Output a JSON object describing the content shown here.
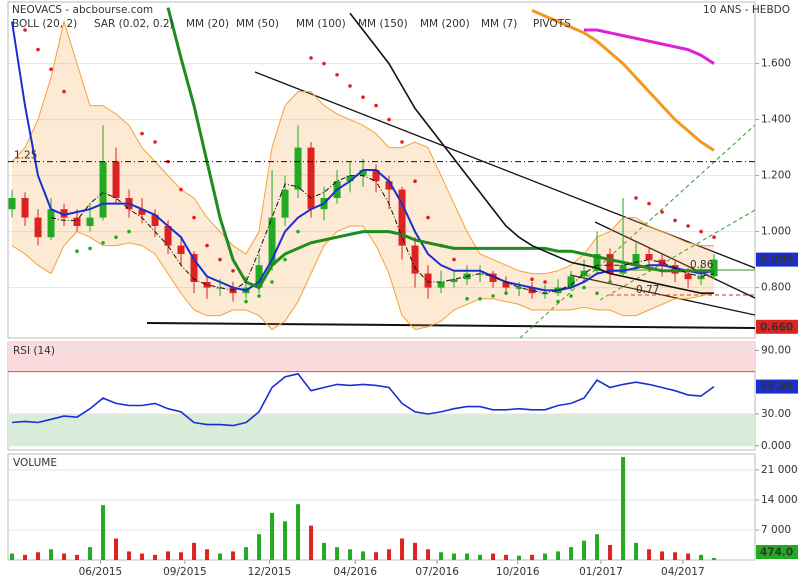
{
  "chart_data": [
    {
      "type": "candlestick",
      "title": "NEOVACS - abcbourse.com",
      "subtitle": "10 ANS - HEBDO",
      "x": [
        0,
        1,
        2,
        3,
        4,
        5,
        6,
        7,
        8,
        9,
        10,
        11,
        12,
        13,
        14,
        15,
        16,
        17,
        18,
        19,
        20,
        21,
        22,
        23,
        24,
        25,
        26,
        27,
        28,
        29,
        30,
        31,
        32,
        33,
        34,
        35,
        36,
        37,
        38,
        39,
        40,
        41,
        42,
        43,
        44,
        45,
        46,
        47,
        48,
        49,
        50,
        51,
        52,
        53,
        54
      ],
      "xlim": [
        -0.31,
        57.15
      ],
      "open": [
        1.08,
        1.12,
        1.05,
        0.98,
        1.08,
        1.05,
        1.02,
        1.05,
        1.25,
        1.12,
        1.08,
        1.06,
        1.02,
        0.95,
        0.92,
        0.82,
        0.8,
        0.8,
        0.78,
        0.8,
        0.88,
        1.05,
        1.15,
        1.3,
        1.08,
        1.12,
        1.18,
        1.2,
        1.22,
        1.18,
        1.15,
        0.95,
        0.85,
        0.8,
        0.82,
        0.83,
        0.85,
        0.85,
        0.82,
        0.8,
        0.8,
        0.78,
        0.78,
        0.8,
        0.84,
        0.86,
        0.92,
        0.85,
        0.88,
        0.92,
        0.9,
        0.88,
        0.85,
        0.83,
        0.84
      ],
      "high": [
        1.15,
        1.14,
        1.08,
        1.12,
        1.1,
        1.08,
        1.1,
        1.38,
        1.3,
        1.15,
        1.12,
        1.08,
        1.04,
        0.98,
        0.93,
        0.84,
        0.83,
        0.82,
        0.84,
        0.92,
        1.22,
        1.2,
        1.38,
        1.32,
        1.16,
        1.22,
        1.25,
        1.26,
        1.24,
        1.2,
        1.16,
        0.98,
        0.88,
        0.86,
        0.86,
        0.88,
        0.88,
        0.86,
        0.84,
        0.82,
        0.82,
        0.81,
        0.83,
        0.86,
        0.9,
        1.0,
        0.94,
        1.12,
        0.96,
        0.94,
        0.92,
        0.9,
        0.87,
        0.88,
        0.92
      ],
      "low": [
        1.05,
        1.02,
        0.95,
        0.97,
        1.02,
        1.0,
        1.0,
        1.04,
        1.1,
        1.05,
        1.03,
        0.98,
        0.92,
        0.88,
        0.78,
        0.76,
        0.77,
        0.75,
        0.76,
        0.78,
        0.86,
        1.02,
        1.12,
        1.05,
        1.04,
        1.1,
        1.14,
        1.16,
        1.14,
        1.08,
        0.9,
        0.8,
        0.76,
        0.78,
        0.8,
        0.81,
        0.82,
        0.8,
        0.78,
        0.77,
        0.76,
        0.76,
        0.77,
        0.79,
        0.83,
        0.85,
        0.82,
        0.84,
        0.86,
        0.86,
        0.84,
        0.82,
        0.8,
        0.81,
        0.83
      ],
      "close": [
        1.12,
        1.05,
        0.98,
        1.08,
        1.05,
        1.02,
        1.05,
        1.25,
        1.12,
        1.08,
        1.06,
        1.02,
        0.95,
        0.92,
        0.82,
        0.8,
        0.8,
        0.78,
        0.8,
        0.88,
        1.05,
        1.15,
        1.3,
        1.08,
        1.12,
        1.18,
        1.2,
        1.22,
        1.18,
        1.15,
        0.95,
        0.85,
        0.8,
        0.82,
        0.83,
        0.85,
        0.85,
        0.82,
        0.8,
        0.8,
        0.78,
        0.78,
        0.8,
        0.84,
        0.86,
        0.92,
        0.85,
        0.88,
        0.92,
        0.9,
        0.88,
        0.85,
        0.83,
        0.84,
        0.9
      ],
      "up_color": "#22aa22",
      "down_color": "#dd2222",
      "series": [
        {
          "name": "BOLL (20, 2)",
          "color": "#f5a03a",
          "style": "band",
          "upper": [
            1.25,
            1.3,
            1.4,
            1.55,
            1.75,
            1.6,
            1.45,
            1.45,
            1.42,
            1.38,
            1.3,
            1.25,
            1.2,
            1.15,
            1.12,
            1.05,
            1.0,
            0.95,
            0.92,
            1.0,
            1.3,
            1.45,
            1.5,
            1.5,
            1.45,
            1.42,
            1.4,
            1.38,
            1.35,
            1.3,
            1.3,
            1.32,
            1.3,
            1.2,
            1.1,
            1.0,
            0.92,
            0.9,
            0.88,
            0.86,
            0.85,
            0.85,
            0.86,
            0.88,
            0.92,
            0.98,
            1.0,
            1.05,
            1.05,
            1.02,
            1.0,
            0.98,
            0.96,
            0.95,
            0.95
          ],
          "lower": [
            0.95,
            0.92,
            0.88,
            0.85,
            0.95,
            1.0,
            0.98,
            0.95,
            0.95,
            0.96,
            0.95,
            0.92,
            0.85,
            0.78,
            0.72,
            0.7,
            0.7,
            0.72,
            0.72,
            0.7,
            0.65,
            0.68,
            0.75,
            0.85,
            0.95,
            1.0,
            1.02,
            1.02,
            0.95,
            0.85,
            0.7,
            0.65,
            0.66,
            0.68,
            0.72,
            0.74,
            0.76,
            0.76,
            0.75,
            0.74,
            0.72,
            0.72,
            0.72,
            0.72,
            0.73,
            0.72,
            0.72,
            0.7,
            0.7,
            0.72,
            0.74,
            0.76,
            0.76,
            0.77,
            0.78
          ]
        },
        {
          "name": "SAR (0.02, 0.2)",
          "color": "#e02020",
          "color_below": "#22aa22",
          "style": "dots",
          "values": [
            null,
            1.72,
            1.65,
            1.58,
            1.5,
            0.93,
            0.94,
            0.96,
            0.98,
            1.0,
            1.35,
            1.32,
            1.25,
            1.15,
            1.05,
            0.95,
            0.9,
            0.86,
            0.75,
            0.77,
            0.82,
            0.9,
            1.0,
            1.62,
            1.6,
            1.56,
            1.52,
            1.48,
            1.45,
            1.4,
            1.32,
            1.18,
            1.05,
            0.95,
            0.9,
            0.76,
            0.76,
            0.77,
            0.78,
            0.8,
            0.83,
            0.82,
            0.75,
            0.77,
            0.8,
            0.78,
            0.82,
            0.86,
            1.12,
            1.1,
            1.07,
            1.04,
            1.02,
            1.0,
            0.98
          ]
        },
        {
          "name": "MM (20)",
          "color": "#1a2fd0",
          "style": "line",
          "width": 2,
          "values": [
            1.75,
            1.45,
            1.2,
            1.08,
            1.06,
            1.07,
            1.08,
            1.1,
            1.1,
            1.1,
            1.08,
            1.06,
            1.02,
            0.98,
            0.9,
            0.84,
            0.82,
            0.8,
            0.79,
            0.82,
            0.9,
            1.0,
            1.05,
            1.08,
            1.1,
            1.15,
            1.18,
            1.22,
            1.22,
            1.18,
            1.1,
            1.0,
            0.92,
            0.88,
            0.86,
            0.86,
            0.86,
            0.84,
            0.82,
            0.81,
            0.8,
            0.79,
            0.79,
            0.8,
            0.82,
            0.85,
            0.86,
            0.86,
            0.87,
            0.88,
            0.88,
            0.87,
            0.86,
            0.85,
            0.86
          ]
        },
        {
          "name": "MM (50)",
          "color": "#1e8c1e",
          "style": "line",
          "width": 3,
          "values": [
            null,
            null,
            null,
            null,
            null,
            null,
            null,
            null,
            null,
            null,
            null,
            null,
            1.8,
            1.62,
            1.45,
            1.25,
            1.05,
            0.9,
            0.82,
            0.8,
            0.88,
            0.92,
            0.94,
            0.96,
            0.97,
            0.98,
            0.99,
            1.0,
            1.0,
            1.0,
            0.99,
            0.97,
            0.96,
            0.95,
            0.94,
            0.94,
            0.94,
            0.94,
            0.94,
            0.94,
            0.94,
            0.94,
            0.93,
            0.93,
            0.92,
            0.91,
            0.9,
            0.89,
            0.88,
            0.87,
            0.86,
            0.86,
            0.86,
            0.86,
            0.86
          ]
        },
        {
          "name": "MM (100)",
          "color": "#111111",
          "style": "line",
          "width": 1.6,
          "values": [
            null,
            null,
            null,
            null,
            null,
            null,
            null,
            null,
            null,
            null,
            null,
            null,
            null,
            null,
            null,
            null,
            null,
            null,
            null,
            null,
            null,
            null,
            null,
            null,
            null,
            null,
            1.78,
            1.72,
            1.66,
            1.6,
            1.52,
            1.44,
            1.38,
            1.32,
            1.26,
            1.2,
            1.14,
            1.08,
            1.02,
            0.98,
            0.95,
            0.93,
            0.91,
            0.89,
            0.88,
            0.87,
            0.85,
            0.84,
            0.83,
            0.82,
            0.81,
            0.8,
            0.79,
            0.78,
            0.78
          ]
        },
        {
          "name": "MM (150)",
          "color": "#f5961e",
          "style": "line",
          "width": 3,
          "values": [
            null,
            null,
            null,
            null,
            null,
            null,
            null,
            null,
            null,
            null,
            null,
            null,
            null,
            null,
            null,
            null,
            null,
            null,
            null,
            null,
            null,
            null,
            null,
            null,
            null,
            null,
            null,
            null,
            null,
            null,
            null,
            null,
            null,
            null,
            null,
            null,
            null,
            null,
            null,
            null,
            1.79,
            1.77,
            1.75,
            1.73,
            1.71,
            1.68,
            1.64,
            1.6,
            1.55,
            1.5,
            1.45,
            1.4,
            1.36,
            1.32,
            1.29
          ]
        },
        {
          "name": "MM (200)",
          "color": "#e020d8",
          "style": "line",
          "width": 3,
          "values": [
            null,
            null,
            null,
            null,
            null,
            null,
            null,
            null,
            null,
            null,
            null,
            null,
            null,
            null,
            null,
            null,
            null,
            null,
            null,
            null,
            null,
            null,
            null,
            null,
            null,
            null,
            null,
            null,
            null,
            null,
            null,
            null,
            null,
            null,
            null,
            null,
            null,
            null,
            null,
            null,
            null,
            null,
            null,
            null,
            1.72,
            1.72,
            1.71,
            1.7,
            1.69,
            1.68,
            1.67,
            1.66,
            1.65,
            1.63,
            1.6
          ]
        },
        {
          "name": "MM (7)",
          "color": "#111111",
          "style": "line",
          "width": 1,
          "dash": true,
          "values": [
            null,
            null,
            null,
            1.05,
            1.04,
            1.04,
            1.1,
            1.14,
            1.12,
            1.08,
            1.05,
            1.0,
            0.95,
            0.88,
            0.83,
            0.81,
            0.8,
            0.79,
            0.82,
            0.93,
            1.05,
            1.17,
            1.16,
            1.12,
            1.14,
            1.18,
            1.2,
            1.2,
            1.18,
            1.1,
            0.98,
            0.87,
            0.82,
            0.82,
            0.83,
            0.84,
            0.85,
            0.84,
            0.82,
            0.8,
            0.79,
            0.78,
            0.79,
            0.81,
            0.85,
            0.88,
            0.88,
            0.88,
            0.89,
            0.9,
            0.89,
            0.87,
            0.85,
            0.84,
            0.85
          ]
        },
        {
          "name": "PIVOTS",
          "color": "#999999",
          "line_color": "#111111",
          "style": "pivots",
          "levels": [
            {
              "value": 1.25,
              "label": "1.25"
            }
          ]
        }
      ],
      "annotations": [
        {
          "value": 0.86,
          "label": "0.86"
        },
        {
          "value": 0.77,
          "label": "0.77"
        }
      ],
      "last_label": {
        "value": 0.9,
        "label": "0.900",
        "color": "#1a2fd0"
      },
      "low_label": {
        "value": 0.66,
        "label": "0.660",
        "color": "#dd2222"
      },
      "ylim": [
        0.62,
        1.82
      ],
      "yticks": [
        {
          "value": 1.6,
          "label": "1.600"
        },
        {
          "value": 1.4,
          "label": "1.400"
        },
        {
          "value": 1.2,
          "label": "1.200"
        },
        {
          "value": 1.0,
          "label": "1.000"
        },
        {
          "value": 0.8,
          "label": "0.800"
        }
      ],
      "grid": true
    },
    {
      "type": "line",
      "title": "RSI (14)",
      "color": "#1a2fd0",
      "values": [
        22,
        23,
        22,
        25,
        28,
        27,
        35,
        45,
        40,
        38,
        38,
        40,
        35,
        32,
        22,
        20,
        20,
        19,
        22,
        32,
        55,
        65,
        68,
        52,
        55,
        58,
        57,
        58,
        57,
        55,
        40,
        32,
        30,
        32,
        35,
        37,
        37,
        34,
        34,
        35,
        34,
        34,
        38,
        40,
        45,
        62,
        55,
        58,
        60,
        58,
        55,
        52,
        48,
        47,
        55.89
      ],
      "last_label": {
        "value": 55.89,
        "label": "55.89",
        "color": "#1a2fd0"
      },
      "bands": [
        {
          "from": 70,
          "to": 100,
          "color": "#fbd9dc",
          "edge": "#e05050"
        },
        {
          "from": 0,
          "to": 30,
          "color": "#d9ecd9",
          "edge": "#3a9a3a"
        }
      ],
      "ylim": [
        -4,
        98
      ],
      "yticks": [
        {
          "value": 90,
          "label": "90.00"
        },
        {
          "value": 30,
          "label": "30.00"
        },
        {
          "value": 0,
          "label": "0.000"
        }
      ],
      "grid": true
    },
    {
      "type": "bar",
      "title": "VOLUME",
      "values": [
        1500,
        1200,
        1800,
        2500,
        1500,
        1200,
        3000,
        12800,
        5000,
        2000,
        1500,
        1200,
        2000,
        1800,
        4000,
        2500,
        1500,
        2000,
        3000,
        6000,
        11000,
        9000,
        13000,
        8000,
        4000,
        3000,
        2500,
        2000,
        1800,
        2500,
        5000,
        4000,
        2500,
        1800,
        1500,
        1500,
        1200,
        1500,
        1200,
        1000,
        1200,
        1500,
        2000,
        3000,
        4500,
        6000,
        3500,
        24000,
        4000,
        2500,
        2000,
        1800,
        1500,
        1200,
        474
      ],
      "last_label": {
        "value": 474,
        "label": "474.0",
        "color": "#22aa22"
      },
      "ylim": [
        0,
        24700
      ],
      "yticks": [
        {
          "value": 21000,
          "label": "21 000"
        },
        {
          "value": 14000,
          "label": "14 000"
        },
        {
          "value": 7000,
          "label": "7 000"
        }
      ],
      "xticks": [
        {
          "value": 6.8,
          "label": "06/2015"
        },
        {
          "value": 13.3,
          "label": "09/2015"
        },
        {
          "value": 19.8,
          "label": "12/2015"
        },
        {
          "value": 26.4,
          "label": "04/2016"
        },
        {
          "value": 32.7,
          "label": "07/2016"
        },
        {
          "value": 38.9,
          "label": "10/2016"
        },
        {
          "value": 45.3,
          "label": "01/2017"
        },
        {
          "value": 51.6,
          "label": "04/2017"
        }
      ],
      "grid": true
    }
  ]
}
